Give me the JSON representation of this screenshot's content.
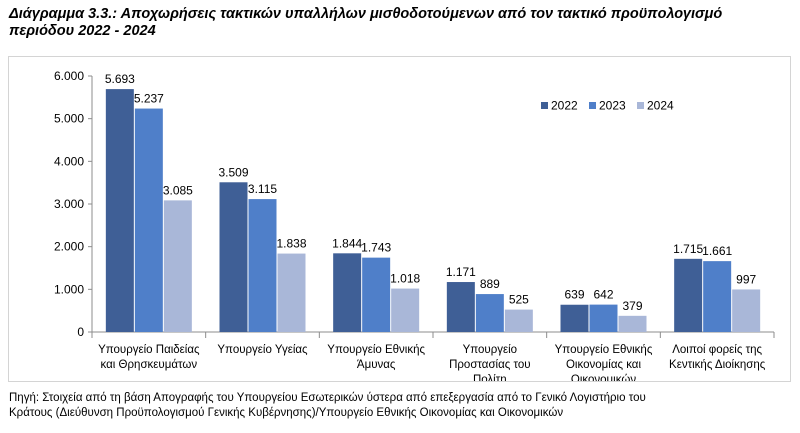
{
  "title_line1": "Διάγραμμα 3.3.: Αποχωρήσεις τακτικών υπαλλήλων μισθοδοτούμενων από τον τακτικό προϋπολογισμό",
  "title_line2": "περιόδου 2022 - 2024",
  "source_line1": "Πηγή: Στοιχεία από τη βάση Απογραφής του Υπουργείου Εσωτερικών ύστερα από επεξεργασία από το Γενικό Λογιστήριο του",
  "source_line2": "Κράτους (Διεύθυνση Προϋπολογισμού Γενικής Κυβέρνησης)/Υπουργείο Εθνικής Οικονομίας και Οικονομικών",
  "chart_data": {
    "type": "bar",
    "title": "",
    "xlabel": "",
    "ylabel": "",
    "ylim": [
      0,
      6000
    ],
    "yticks": [
      0,
      1000,
      2000,
      3000,
      4000,
      5000,
      6000
    ],
    "ytick_labels": [
      "0",
      "1.000",
      "2.000",
      "3.000",
      "4.000",
      "5.000",
      "6.000"
    ],
    "grid": false,
    "legend": "top-right",
    "categories": [
      [
        "Υπουργείο Παιδείας",
        "και Θρησκευμάτων"
      ],
      [
        "Υπουργείο Υγείας"
      ],
      [
        "Υπουργείο Εθνικής",
        "Άμυνας"
      ],
      [
        "Υπουργείο",
        "Προστασίας του",
        "Πολίτη"
      ],
      [
        "Υπουργείο Εθνικής",
        "Οικονομίας και",
        "Οικονομικών"
      ],
      [
        "Λοιποί φορείς της",
        "Κεντικής Διοίκησης"
      ]
    ],
    "series": [
      {
        "name": "2022",
        "color": "#3f5f96",
        "values": [
          5693,
          3509,
          1844,
          1171,
          639,
          1715
        ],
        "labels": [
          "5.693",
          "3.509",
          "1.844",
          "1.171",
          "639",
          "1.715"
        ]
      },
      {
        "name": "2023",
        "color": "#4f7fc9",
        "values": [
          5237,
          3115,
          1743,
          889,
          642,
          1661
        ],
        "labels": [
          "5.237",
          "3.115",
          "1.743",
          "889",
          "642",
          "1.661"
        ]
      },
      {
        "name": "2024",
        "color": "#a9b7d8",
        "values": [
          3085,
          1838,
          1018,
          525,
          379,
          997
        ],
        "labels": [
          "3.085",
          "1.838",
          "1.018",
          "525",
          "379",
          "997"
        ]
      }
    ]
  }
}
